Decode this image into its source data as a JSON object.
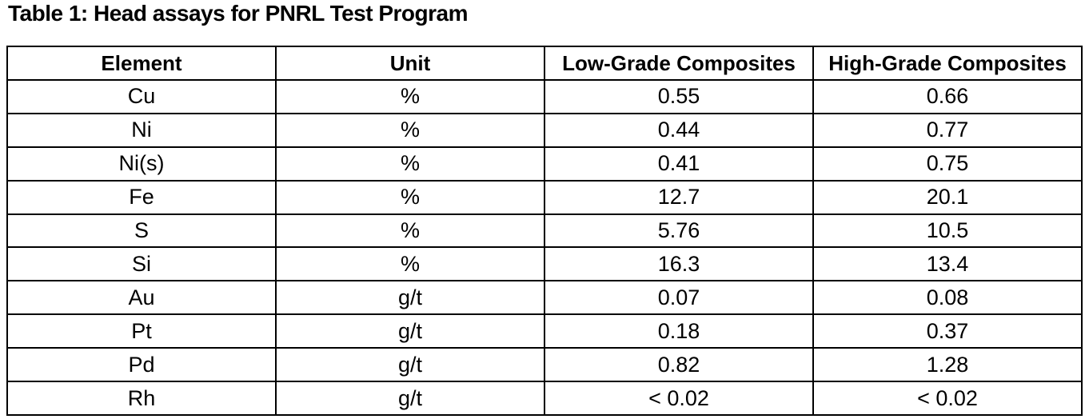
{
  "title": "Table 1: Head assays for PNRL Test Program",
  "colors": {
    "text": "#000000",
    "border": "#000000",
    "background": "#ffffff"
  },
  "table": {
    "columns": [
      "Element",
      "Unit",
      "Low-Grade Composites",
      "High-Grade Composites"
    ],
    "rows": [
      {
        "element": "Cu",
        "unit": "%",
        "low_grade": "0.55",
        "high_grade": "0.66"
      },
      {
        "element": "Ni",
        "unit": "%",
        "low_grade": "0.44",
        "high_grade": "0.77"
      },
      {
        "element": "Ni(s)",
        "unit": "%",
        "low_grade": "0.41",
        "high_grade": "0.75"
      },
      {
        "element": "Fe",
        "unit": "%",
        "low_grade": "12.7",
        "high_grade": "20.1"
      },
      {
        "element": "S",
        "unit": "%",
        "low_grade": "5.76",
        "high_grade": "10.5"
      },
      {
        "element": "Si",
        "unit": "%",
        "low_grade": "16.3",
        "high_grade": "13.4"
      },
      {
        "element": "Au",
        "unit": "g/t",
        "low_grade": "0.07",
        "high_grade": "0.08"
      },
      {
        "element": "Pt",
        "unit": "g/t",
        "low_grade": "0.18",
        "high_grade": "0.37"
      },
      {
        "element": "Pd",
        "unit": "g/t",
        "low_grade": "0.82",
        "high_grade": "1.28"
      },
      {
        "element": "Rh",
        "unit": "g/t",
        "low_grade": "< 0.02",
        "high_grade": "< 0.02"
      }
    ]
  }
}
